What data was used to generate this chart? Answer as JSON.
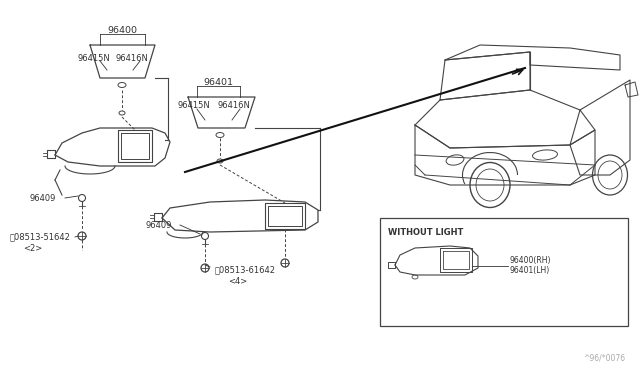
{
  "bg_color": "#ffffff",
  "line_color": "#444444",
  "text_color": "#333333",
  "fig_width": 6.4,
  "fig_height": 3.72,
  "dpi": 100,
  "watermark": "^96/*0076",
  "parts": {
    "left_visor_label": "96400",
    "left_sub1": "96415N",
    "left_sub2": "96416N",
    "left_clip": "96409",
    "left_bolt_part": "08513-51642",
    "left_bolt_qty": "<2>",
    "right_visor_label": "96401",
    "right_sub1": "96415N",
    "right_sub2": "96416N",
    "right_clip": "96409",
    "right_bolt_part": "08513-61642",
    "right_bolt_qty": "<4>",
    "inset_label": "WITHOUT LIGHT",
    "inset_part1": "96400(RH)",
    "inset_part2": "96401(LH)"
  }
}
